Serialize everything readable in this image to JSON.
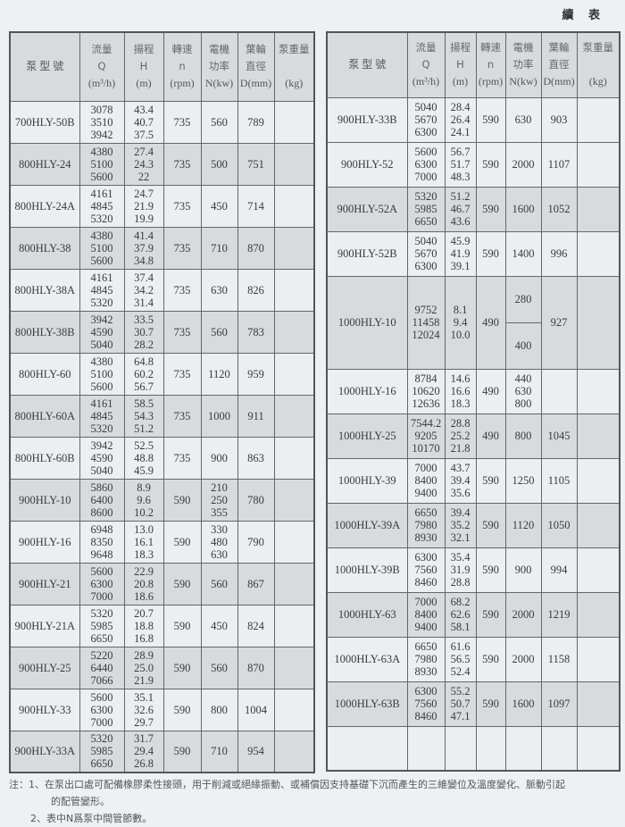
{
  "page_title": "續 表",
  "headers": {
    "model": "泵 型 號",
    "flow": [
      "流量",
      "Q",
      "(m³/h)"
    ],
    "head": [
      "揚程",
      "H",
      "(m)"
    ],
    "speed": [
      "轉速",
      "n",
      "(rpm)"
    ],
    "power": [
      "電機",
      "功率",
      "N(kw)"
    ],
    "impeller": [
      "葉輪",
      "直徑",
      "D(mm)"
    ],
    "weight": [
      "泵重量",
      "",
      "(kg)"
    ]
  },
  "left_table": [
    {
      "model": "700HLY-50B",
      "q": [
        "3078",
        "3510",
        "3942"
      ],
      "h": [
        "43.4",
        "40.7",
        "37.5"
      ],
      "n": "735",
      "power": [
        "560"
      ],
      "d": "789",
      "kg": "",
      "shade": "light"
    },
    {
      "model": "800HLY-24",
      "q": [
        "4380",
        "5100",
        "5600"
      ],
      "h": [
        "27.4",
        "24.3",
        "22"
      ],
      "n": "735",
      "power": [
        "500"
      ],
      "d": "751",
      "kg": "",
      "shade": "dark"
    },
    {
      "model": "800HLY-24A",
      "q": [
        "4161",
        "4845",
        "5320"
      ],
      "h": [
        "24.7",
        "21.9",
        "19.9"
      ],
      "n": "735",
      "power": [
        "450"
      ],
      "d": "714",
      "kg": "",
      "shade": "light"
    },
    {
      "model": "800HLY-38",
      "q": [
        "4380",
        "5100",
        "5600"
      ],
      "h": [
        "41.4",
        "37.9",
        "34.8"
      ],
      "n": "735",
      "power": [
        "710"
      ],
      "d": "870",
      "kg": "",
      "shade": "dark"
    },
    {
      "model": "800HLY-38A",
      "q": [
        "4161",
        "4845",
        "5320"
      ],
      "h": [
        "37.4",
        "34.2",
        "31.4"
      ],
      "n": "735",
      "power": [
        "630"
      ],
      "d": "826",
      "kg": "",
      "shade": "light"
    },
    {
      "model": "800HLY-38B",
      "q": [
        "3942",
        "4590",
        "5040"
      ],
      "h": [
        "33.5",
        "30.7",
        "28.2"
      ],
      "n": "735",
      "power": [
        "560"
      ],
      "d": "783",
      "kg": "",
      "shade": "dark"
    },
    {
      "model": "800HLY-60",
      "q": [
        "4380",
        "5100",
        "5600"
      ],
      "h": [
        "64.8",
        "60.2",
        "56.7"
      ],
      "n": "735",
      "power": [
        "1120"
      ],
      "d": "959",
      "kg": "",
      "shade": "light"
    },
    {
      "model": "800HLY-60A",
      "q": [
        "4161",
        "4845",
        "5320"
      ],
      "h": [
        "58.5",
        "54.3",
        "51.2"
      ],
      "n": "735",
      "power": [
        "1000"
      ],
      "d": "911",
      "kg": "",
      "shade": "dark"
    },
    {
      "model": "800HLY-60B",
      "q": [
        "3942",
        "4590",
        "5040"
      ],
      "h": [
        "52.5",
        "48.8",
        "45.9"
      ],
      "n": "735",
      "power": [
        "900"
      ],
      "d": "863",
      "kg": "",
      "shade": "light"
    },
    {
      "model": "900HLY-10",
      "q": [
        "5860",
        "6400",
        "8600"
      ],
      "h": [
        "8.9",
        "9.6",
        "10.2"
      ],
      "n": "590",
      "power": [
        "210",
        "250",
        "355"
      ],
      "d": "780",
      "kg": "",
      "shade": "dark"
    },
    {
      "model": "900HLY-16",
      "q": [
        "6948",
        "8350",
        "9648"
      ],
      "h": [
        "13.0",
        "16.1",
        "18.3"
      ],
      "n": "590",
      "power": [
        "330",
        "480",
        "630"
      ],
      "d": "790",
      "kg": "",
      "shade": "light"
    },
    {
      "model": "900HLY-21",
      "q": [
        "5600",
        "6300",
        "7000"
      ],
      "h": [
        "22.9",
        "20.8",
        "18.6"
      ],
      "n": "590",
      "power": [
        "560"
      ],
      "d": "867",
      "kg": "",
      "shade": "dark"
    },
    {
      "model": "900HLY-21A",
      "q": [
        "5320",
        "5985",
        "6650"
      ],
      "h": [
        "20.7",
        "18.8",
        "16.8"
      ],
      "n": "590",
      "power": [
        "450"
      ],
      "d": "824",
      "kg": "",
      "shade": "light"
    },
    {
      "model": "900HLY-25",
      "q": [
        "5220",
        "6440",
        "7066"
      ],
      "h": [
        "28.9",
        "25.0",
        "21.9"
      ],
      "n": "590",
      "power": [
        "560"
      ],
      "d": "870",
      "kg": "",
      "shade": "dark"
    },
    {
      "model": "900HLY-33",
      "q": [
        "5600",
        "6300",
        "7000"
      ],
      "h": [
        "35.1",
        "32.6",
        "29.7"
      ],
      "n": "590",
      "power": [
        "800"
      ],
      "d": "1004",
      "kg": "",
      "shade": "light"
    },
    {
      "model": "900HLY-33A",
      "q": [
        "5320",
        "5985",
        "6650"
      ],
      "h": [
        "31.7",
        "29.4",
        "26.8"
      ],
      "n": "590",
      "power": [
        "710"
      ],
      "d": "954",
      "kg": "",
      "shade": "dark"
    }
  ],
  "right_table": [
    {
      "model": "900HLY-33B",
      "q": [
        "5040",
        "5670",
        "6300"
      ],
      "h": [
        "28.4",
        "26.4",
        "24.1"
      ],
      "n": "590",
      "power": [
        "630"
      ],
      "d": "903",
      "kg": "",
      "shade": "light"
    },
    {
      "model": "900HLY-52",
      "q": [
        "5600",
        "6300",
        "7000"
      ],
      "h": [
        "56.7",
        "51.7",
        "48.3"
      ],
      "n": "590",
      "power": [
        "2000"
      ],
      "d": "1107",
      "kg": "",
      "shade": "light"
    },
    {
      "model": "900HLY-52A",
      "q": [
        "5320",
        "5985",
        "6650"
      ],
      "h": [
        "51.2",
        "46.7",
        "43.6"
      ],
      "n": "590",
      "power": [
        "1600"
      ],
      "d": "1052",
      "kg": "",
      "shade": "dark"
    },
    {
      "model": "900HLY-52B",
      "q": [
        "5040",
        "5670",
        "6300"
      ],
      "h": [
        "45.9",
        "41.9",
        "39.1"
      ],
      "n": "590",
      "power": [
        "1400"
      ],
      "d": "996",
      "kg": "",
      "shade": "light"
    },
    {
      "model": "1000HLY-10",
      "q": [
        "9752",
        "11458",
        "12024"
      ],
      "h": [
        "8.1",
        "9.4",
        "10.0"
      ],
      "n": "490",
      "power": [
        "280",
        "400"
      ],
      "power_split": true,
      "d": "927",
      "kg": "",
      "shade": "dark",
      "tall": true
    },
    {
      "model": "1000HLY-16",
      "q": [
        "8784",
        "10620",
        "12636"
      ],
      "h": [
        "14.6",
        "16.6",
        "18.3"
      ],
      "n": "490",
      "power": [
        "440",
        "630",
        "800"
      ],
      "d": "",
      "kg": "",
      "shade": "light"
    },
    {
      "model": "1000HLY-25",
      "q": [
        "7544.2",
        "9205",
        "10170"
      ],
      "h": [
        "28.8",
        "25.2",
        "21.8"
      ],
      "n": "490",
      "power": [
        "800"
      ],
      "d": "1045",
      "kg": "",
      "shade": "dark"
    },
    {
      "model": "1000HLY-39",
      "q": [
        "7000",
        "8400",
        "9400"
      ],
      "h": [
        "43.7",
        "39.4",
        "35.6"
      ],
      "n": "590",
      "power": [
        "1250"
      ],
      "d": "1105",
      "kg": "",
      "shade": "light"
    },
    {
      "model": "1000HLY-39A",
      "q": [
        "6650",
        "7980",
        "8930"
      ],
      "h": [
        "39.4",
        "35.2",
        "32.1"
      ],
      "n": "590",
      "power": [
        "1120"
      ],
      "d": "1050",
      "kg": "",
      "shade": "dark"
    },
    {
      "model": "1000HLY-39B",
      "q": [
        "6300",
        "7560",
        "8460"
      ],
      "h": [
        "35.4",
        "31.9",
        "28.8"
      ],
      "n": "590",
      "power": [
        "900"
      ],
      "d": "994",
      "kg": "",
      "shade": "light"
    },
    {
      "model": "1000HLY-63",
      "q": [
        "7000",
        "8400",
        "9400"
      ],
      "h": [
        "68.2",
        "62.6",
        "58.1"
      ],
      "n": "590",
      "power": [
        "2000"
      ],
      "d": "1219",
      "kg": "",
      "shade": "dark"
    },
    {
      "model": "1000HLY-63A",
      "q": [
        "6650",
        "7980",
        "8930"
      ],
      "h": [
        "61.6",
        "56.5",
        "52.4"
      ],
      "n": "590",
      "power": [
        "2000"
      ],
      "d": "1158",
      "kg": "",
      "shade": "light"
    },
    {
      "model": "1000HLY-63B",
      "q": [
        "6300",
        "7560",
        "8460"
      ],
      "h": [
        "55.2",
        "50.7",
        "47.1"
      ],
      "n": "590",
      "power": [
        "1600"
      ],
      "d": "1097",
      "kg": "",
      "shade": "dark"
    },
    {
      "model": "",
      "q": [],
      "h": [],
      "n": "",
      "power": [],
      "d": "",
      "kg": "",
      "shade": "light"
    }
  ],
  "notes": {
    "prefix": "注：",
    "note1_line1": "1、在泵出口處可配備橡膠柔性接頭，用于削減或絕緣振動、或補償因支持基礎下沉而產生的三維變位及溫度變化、脈動引起",
    "note1_line2": "的配管變形。",
    "note2": "2、表中N爲泵中間管節數。"
  }
}
